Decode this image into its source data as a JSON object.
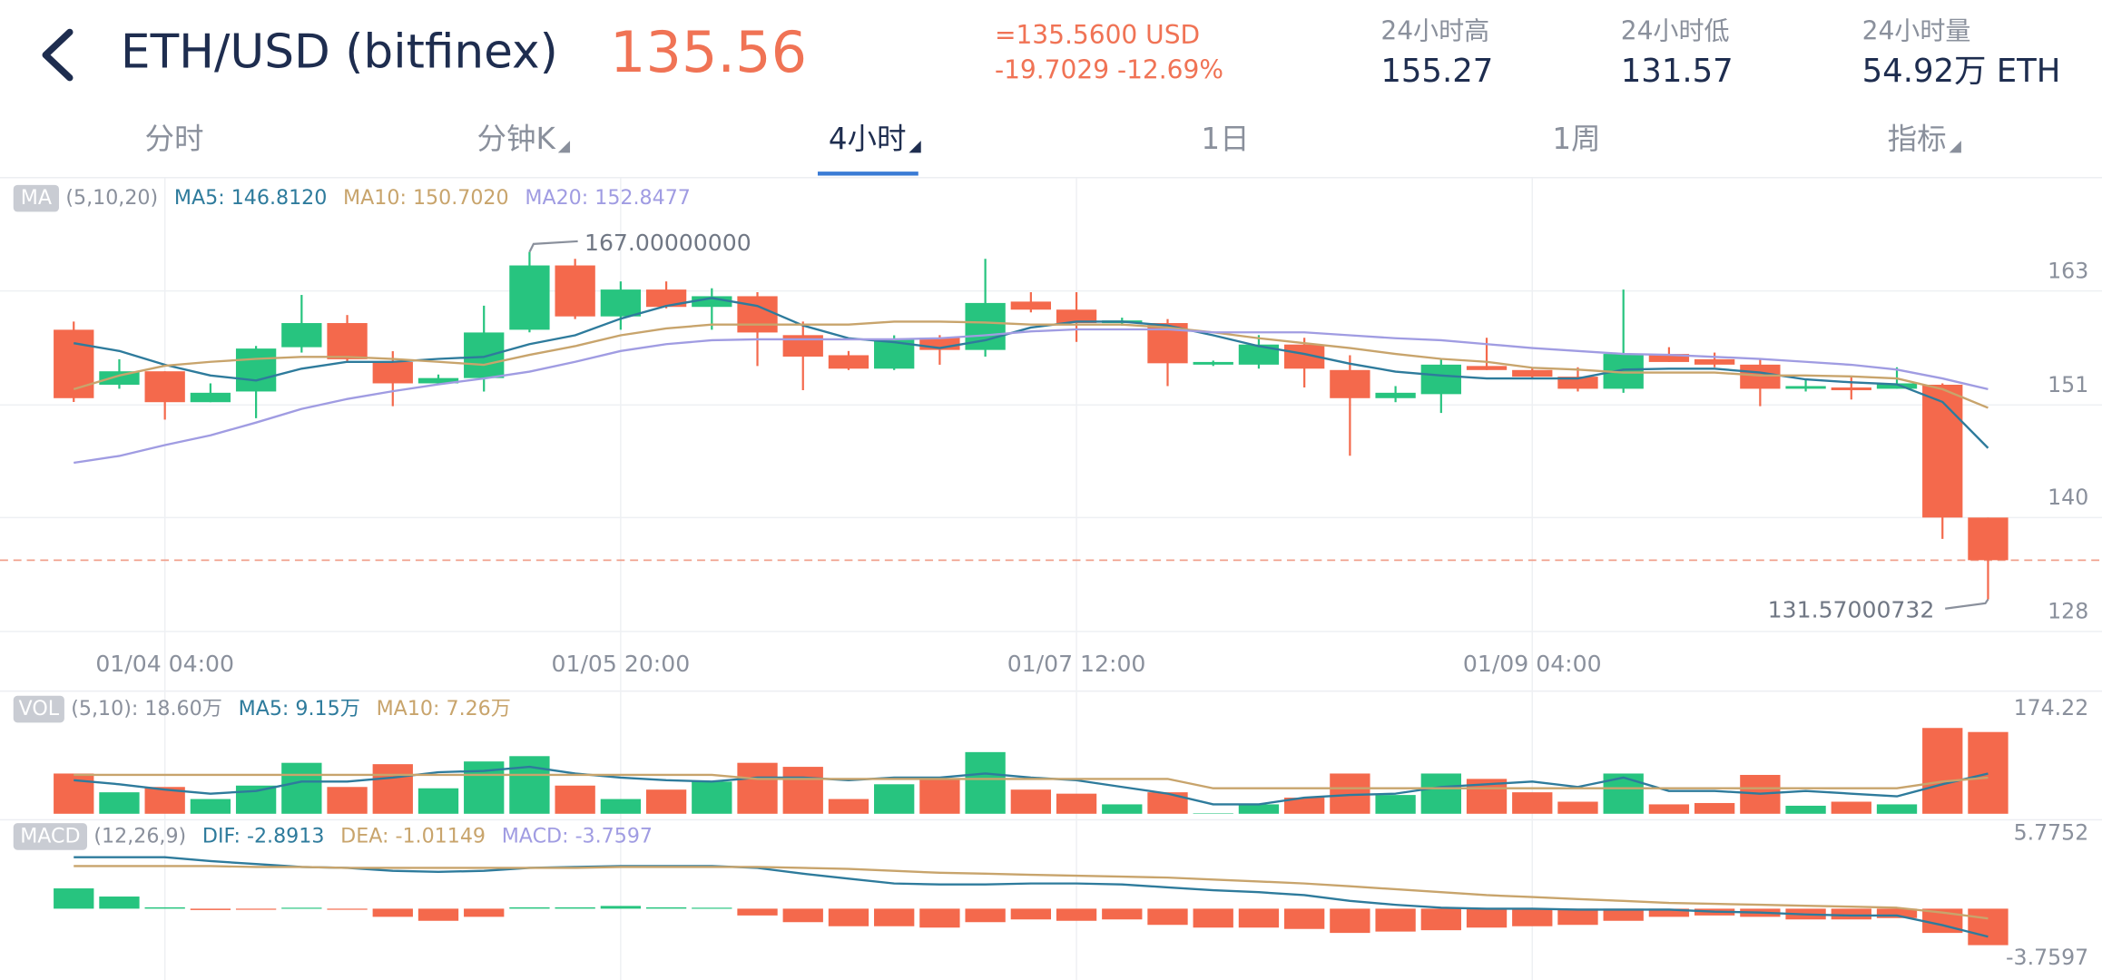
{
  "header": {
    "pair": "ETH/USD (bitfinex)",
    "price": "135.56",
    "usd_price": "=135.5600 USD",
    "change": "-19.7029 -12.69%",
    "stats": [
      {
        "label": "24小时高",
        "value": "155.27"
      },
      {
        "label": "24小时低",
        "value": "131.57"
      },
      {
        "label": "24小时量",
        "value": "54.92万 ETH"
      }
    ]
  },
  "tabs": [
    "分时",
    "分钟K",
    "4小时",
    "1日",
    "1周",
    "指标"
  ],
  "active_tab": 2,
  "chart_data": [
    {
      "type": "candlestick",
      "categories": [
        null,
        null,
        "01/04 04:00",
        null,
        null,
        null,
        null,
        null,
        null,
        null,
        null,
        null,
        "01/05 20:00",
        null,
        null,
        null,
        null,
        null,
        null,
        null,
        null,
        null,
        "01/07 12:00",
        null,
        null,
        null,
        null,
        null,
        null,
        null,
        null,
        null,
        "01/09 04:00",
        null,
        null,
        null,
        null,
        null,
        null,
        null,
        null,
        null,
        null
      ],
      "open": [
        159.07,
        153.46,
        154.83,
        151.68,
        152.77,
        157.29,
        159.75,
        155.78,
        153.6,
        154.14,
        159.07,
        165.63,
        160.43,
        163.17,
        161.4,
        162.49,
        158.52,
        156.47,
        155.1,
        158.25,
        157.01,
        161.94,
        161.12,
        159.75,
        159.75,
        155.51,
        155.51,
        157.56,
        154.96,
        152.09,
        152.5,
        155.37,
        154.96,
        154.28,
        153.05,
        156.6,
        156.06,
        155.51,
        153.05,
        153.18,
        153.05,
        153.46,
        139.91
      ],
      "high": [
        159.9,
        156.06,
        154.83,
        153.6,
        157.42,
        162.62,
        160.57,
        156.88,
        154.5,
        161.53,
        167,
        166.3,
        164.0,
        164.0,
        163.3,
        162.9,
        159.9,
        156.9,
        158.5,
        158.52,
        166.3,
        162.9,
        162.9,
        160.3,
        160.16,
        155.92,
        158.52,
        158.25,
        156.47,
        153.32,
        156.06,
        158.25,
        155.24,
        155.24,
        163.17,
        157.29,
        156.74,
        156.06,
        154.0,
        154.28,
        155.24,
        153.6,
        139.91
      ],
      "low": [
        151.7,
        153.05,
        149.9,
        151.68,
        150.04,
        156.74,
        155.78,
        151.27,
        153.6,
        152.77,
        158.8,
        160.16,
        159.07,
        161.25,
        159.07,
        155.37,
        152.9,
        154.96,
        154.96,
        155.5,
        156.33,
        160.84,
        157.83,
        159.48,
        153.32,
        155.37,
        155.1,
        153.18,
        146.21,
        151.68,
        150.58,
        154.96,
        154.14,
        152.77,
        152.64,
        155.78,
        155.24,
        151.27,
        152.77,
        151.95,
        153.05,
        137.73,
        131.57
      ],
      "close": [
        152.09,
        154.83,
        151.68,
        152.64,
        157.15,
        159.75,
        156.06,
        153.6,
        154.14,
        158.79,
        165.63,
        160.43,
        163.17,
        161.4,
        162.49,
        158.79,
        156.33,
        155.1,
        158.11,
        157.01,
        161.8,
        161.12,
        159.75,
        160.02,
        155.65,
        155.78,
        157.56,
        155.1,
        152.09,
        152.64,
        155.51,
        154.96,
        154.28,
        153.05,
        156.6,
        155.78,
        155.51,
        153.05,
        153.32,
        152.9,
        153.6,
        139.91,
        135.56
      ],
      "up_color": "#27c47f",
      "down_color": "#f4694c",
      "ylim": [
        128.29,
        174.52
      ],
      "yticks": [
        {
          "value": 128.29,
          "label": "128"
        },
        {
          "value": 139.91,
          "label": "140"
        },
        {
          "value": 151.4,
          "label": "151"
        },
        {
          "value": 163.03,
          "label": "163"
        }
      ],
      "grid": true,
      "badge": "MA",
      "params": "(5,10,20)",
      "series": [
        {
          "name": "MA5: 146.8120",
          "color": "#2e7b9c",
          "values": [
            157.7,
            156.9,
            155.5,
            154.4,
            153.9,
            155.1,
            155.8,
            155.8,
            156.1,
            156.3,
            157.6,
            158.5,
            160.2,
            161.5,
            162.3,
            161.5,
            159.5,
            158.2,
            157.8,
            157.2,
            158.0,
            159.3,
            159.9,
            159.9,
            159.5,
            158.5,
            157.4,
            156.6,
            155.6,
            154.8,
            154.4,
            154.1,
            154.1,
            154.1,
            155.0,
            155.1,
            155.1,
            154.7,
            154.0,
            153.7,
            153.5,
            151.7,
            147.0
          ]
        },
        {
          "name": "MA10: 150.7020",
          "color": "#c8a46c",
          "values": [
            153.0,
            154.4,
            155.4,
            155.8,
            156.1,
            156.3,
            156.3,
            156.1,
            155.8,
            155.5,
            156.5,
            157.4,
            158.5,
            159.2,
            159.6,
            159.6,
            159.6,
            159.6,
            159.9,
            159.9,
            159.8,
            159.6,
            159.6,
            159.6,
            159.3,
            158.8,
            158.2,
            157.7,
            157.2,
            156.6,
            156.1,
            155.8,
            155.2,
            155.0,
            154.7,
            154.7,
            154.7,
            154.4,
            154.4,
            154.3,
            154.1,
            153.0,
            151.1
          ]
        },
        {
          "name": "MA20: 152.8477",
          "color": "#a09ce2",
          "values": [
            145.5,
            146.2,
            147.3,
            148.3,
            149.6,
            151.0,
            152.0,
            152.8,
            153.5,
            154.1,
            154.8,
            155.8,
            156.9,
            157.6,
            158.0,
            158.1,
            158.1,
            158.1,
            158.1,
            158.2,
            158.5,
            158.9,
            159.1,
            159.1,
            159.1,
            158.8,
            158.8,
            158.8,
            158.5,
            158.2,
            158.0,
            157.6,
            157.2,
            156.9,
            156.6,
            156.5,
            156.3,
            156.1,
            155.8,
            155.5,
            155.0,
            154.1,
            153.0
          ]
        }
      ],
      "annotations": [
        {
          "text": "167.00000000"
        },
        {
          "text": "131.57000732"
        }
      ],
      "price_line_color": "#f0a08c"
    },
    {
      "type": "bar",
      "values": [
        81.7,
        43.6,
        54.4,
        29.9,
        57.2,
        103.4,
        54.4,
        100.7,
        51.7,
        106.2,
        117.0,
        57.2,
        29.9,
        49.0,
        65.3,
        103.4,
        95.3,
        29.9,
        59.9,
        70.8,
        125.2,
        49.0,
        40.8,
        19.1,
        43.6,
        1.0,
        19.1,
        32.7,
        81.7,
        38.1,
        81.7,
        70.8,
        43.6,
        24.5,
        81.7,
        19.1,
        21.8,
        78.9,
        16.3,
        24.5,
        19.1,
        174.2,
        166.0
      ],
      "ylim": [
        0,
        174.22
      ],
      "yticks": [
        174.22
      ],
      "badge": "VOL",
      "params": "(5,10): 18.60万",
      "series": [
        {
          "name": "MA5: 9.15万",
          "color": "#2e7b9c",
          "values": [
            68.1,
            59.9,
            49.0,
            40.8,
            46.3,
            65.3,
            65.3,
            73.5,
            84.4,
            87.1,
            95.3,
            81.7,
            73.5,
            68.1,
            65.3,
            73.5,
            73.5,
            68.1,
            73.5,
            73.5,
            81.7,
            73.5,
            68.1,
            54.4,
            40.8,
            19.1,
            19.1,
            32.7,
            38.1,
            40.8,
            54.4,
            59.9,
            65.3,
            54.4,
            73.5,
            46.3,
            46.3,
            40.8,
            46.3,
            40.8,
            35.4,
            59.9,
            81.7
          ]
        },
        {
          "name": "MA10: 7.26万",
          "color": "#c8a46c",
          "values": [
            78.9,
            78.9,
            78.9,
            78.9,
            78.9,
            78.9,
            78.9,
            78.9,
            78.9,
            78.9,
            78.9,
            78.9,
            78.9,
            78.9,
            78.9,
            70.8,
            70.8,
            70.8,
            70.8,
            70.8,
            70.8,
            70.8,
            70.8,
            70.8,
            70.8,
            51.7,
            51.7,
            51.7,
            51.7,
            51.7,
            51.7,
            51.7,
            51.7,
            51.7,
            51.7,
            51.7,
            51.7,
            51.7,
            51.7,
            51.7,
            51.7,
            65.3,
            73.5
          ]
        }
      ]
    },
    {
      "type": "bar",
      "ylim": [
        -3.7597,
        5.7752
      ],
      "yticks": [
        -3.7597,
        5.7752
      ],
      "badge": "MACD",
      "params": "(12,26,9)",
      "pos_color": "#27c47f",
      "neg_color": "#f4694c",
      "series": [
        {
          "name": "DIF: -2.8913",
          "color": "#2e7b9c",
          "values": [
            5.3,
            5.3,
            5.3,
            4.9,
            4.6,
            4.3,
            4.2,
            3.9,
            3.8,
            3.9,
            4.2,
            4.3,
            4.4,
            4.4,
            4.4,
            4.2,
            3.6,
            3.1,
            2.6,
            2.5,
            2.5,
            2.6,
            2.6,
            2.5,
            2.2,
            1.9,
            1.7,
            1.4,
            0.8,
            0.4,
            0.1,
            0,
            0,
            -0.1,
            -0.1,
            -0.1,
            -0.3,
            -0.4,
            -0.6,
            -0.7,
            -0.7,
            -1.7,
            -2.8913
          ]
        },
        {
          "name": "DEA: -1.01149",
          "color": "#c8a46c",
          "values": [
            4.4,
            4.4,
            4.4,
            4.4,
            4.3,
            4.3,
            4.2,
            4.2,
            4.2,
            4.2,
            4.2,
            4.2,
            4.3,
            4.3,
            4.3,
            4.3,
            4.2,
            4.1,
            3.9,
            3.7,
            3.6,
            3.5,
            3.4,
            3.3,
            3.2,
            3.0,
            2.8,
            2.6,
            2.3,
            2.0,
            1.7,
            1.4,
            1.2,
            1.0,
            0.8,
            0.6,
            0.5,
            0.4,
            0.3,
            0.2,
            0.1,
            -0.4,
            -1.01149
          ]
        },
        {
          "name": "MACD: -3.7597",
          "color": "#a09ce2",
          "type": "bar",
          "values": [
            2.09,
            1.25,
            0.14,
            -0.14,
            -0.1,
            0.1,
            -0.1,
            -0.84,
            -1.25,
            -0.84,
            0.14,
            0.14,
            0.28,
            0.14,
            0.1,
            -0.7,
            -1.39,
            -1.81,
            -1.81,
            -1.95,
            -1.39,
            -1.11,
            -1.25,
            -1.11,
            -1.67,
            -1.95,
            -1.95,
            -2.09,
            -2.5,
            -2.36,
            -2.22,
            -1.95,
            -1.81,
            -1.67,
            -1.25,
            -0.84,
            -0.7,
            -0.84,
            -1.11,
            -1.11,
            -0.97,
            -2.5,
            -3.7597
          ]
        }
      ]
    }
  ]
}
